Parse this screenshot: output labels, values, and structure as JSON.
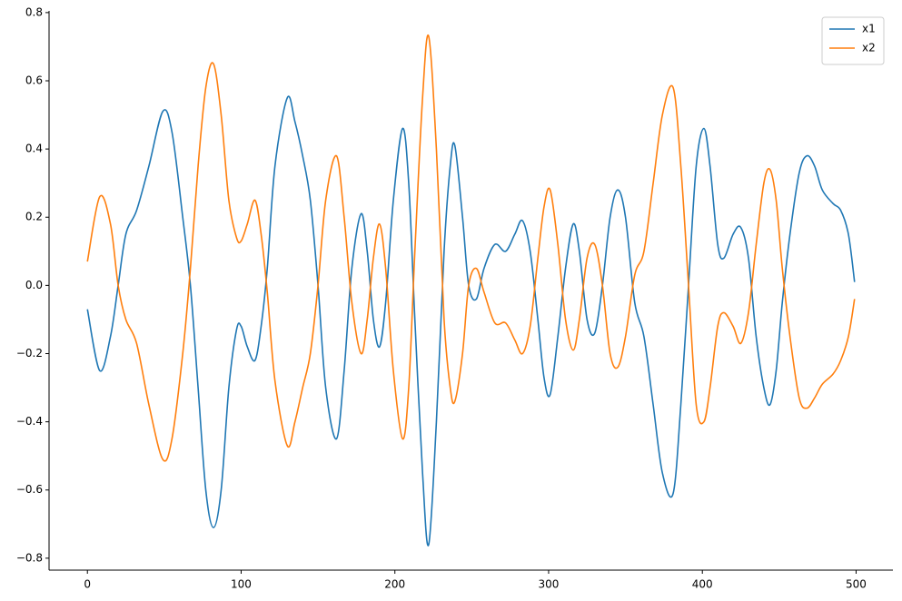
{
  "chart_data": {
    "type": "line",
    "x": [
      0,
      8,
      15,
      20,
      25,
      32,
      40,
      49,
      55,
      62,
      67,
      72,
      77,
      82,
      87,
      92,
      97,
      100,
      104,
      109,
      113,
      117,
      122,
      130,
      135,
      140,
      145,
      150,
      155,
      162,
      167,
      172,
      178,
      182,
      186,
      190,
      194,
      199,
      205,
      209,
      213,
      218,
      222,
      227,
      232,
      236,
      239,
      244,
      248,
      253,
      258,
      265,
      272,
      278,
      283,
      288,
      293,
      297,
      301,
      306,
      311,
      316,
      320,
      325,
      330,
      335,
      340,
      345,
      350,
      356,
      362,
      368,
      374,
      381,
      386,
      391,
      396,
      401,
      405,
      410,
      414,
      420,
      425,
      430,
      435,
      440,
      444,
      448,
      452,
      457,
      463,
      468,
      473,
      478,
      485,
      490,
      495,
      499
    ],
    "series": [
      {
        "name": "x1",
        "color": "#1f77b4",
        "values": [
          -0.07,
          -0.25,
          -0.15,
          0.0,
          0.15,
          0.22,
          0.35,
          0.51,
          0.45,
          0.2,
          0.0,
          -0.3,
          -0.6,
          -0.71,
          -0.6,
          -0.3,
          -0.13,
          -0.12,
          -0.18,
          -0.22,
          -0.12,
          0.05,
          0.35,
          0.55,
          0.48,
          0.38,
          0.25,
          0.0,
          -0.3,
          -0.45,
          -0.25,
          0.05,
          0.21,
          0.1,
          -0.1,
          -0.18,
          -0.05,
          0.25,
          0.46,
          0.3,
          -0.1,
          -0.55,
          -0.76,
          -0.4,
          0.1,
          0.35,
          0.41,
          0.2,
          0.0,
          -0.04,
          0.05,
          0.12,
          0.1,
          0.15,
          0.19,
          0.1,
          -0.1,
          -0.27,
          -0.32,
          -0.15,
          0.05,
          0.18,
          0.1,
          -0.1,
          -0.14,
          0.0,
          0.2,
          0.28,
          0.2,
          -0.05,
          -0.15,
          -0.35,
          -0.55,
          -0.61,
          -0.35,
          0.0,
          0.35,
          0.46,
          0.35,
          0.12,
          0.08,
          0.15,
          0.17,
          0.08,
          -0.15,
          -0.3,
          -0.35,
          -0.25,
          -0.05,
          0.15,
          0.33,
          0.38,
          0.35,
          0.28,
          0.24,
          0.22,
          0.15,
          0.01
        ]
      },
      {
        "name": "x2",
        "color": "#ff7f0e",
        "values": [
          0.07,
          0.26,
          0.18,
          0.0,
          -0.1,
          -0.17,
          -0.35,
          -0.51,
          -0.45,
          -0.2,
          0.05,
          0.35,
          0.58,
          0.65,
          0.5,
          0.25,
          0.14,
          0.13,
          0.18,
          0.25,
          0.15,
          -0.02,
          -0.28,
          -0.47,
          -0.4,
          -0.3,
          -0.2,
          0.0,
          0.25,
          0.38,
          0.2,
          -0.05,
          -0.2,
          -0.1,
          0.08,
          0.18,
          0.05,
          -0.25,
          -0.45,
          -0.3,
          0.1,
          0.55,
          0.73,
          0.4,
          -0.1,
          -0.3,
          -0.34,
          -0.2,
          0.0,
          0.05,
          -0.02,
          -0.11,
          -0.11,
          -0.16,
          -0.2,
          -0.12,
          0.08,
          0.23,
          0.28,
          0.12,
          -0.1,
          -0.19,
          -0.1,
          0.08,
          0.12,
          0.0,
          -0.2,
          -0.24,
          -0.15,
          0.03,
          0.1,
          0.3,
          0.5,
          0.58,
          0.35,
          0.0,
          -0.35,
          -0.4,
          -0.3,
          -0.12,
          -0.08,
          -0.12,
          -0.17,
          -0.08,
          0.12,
          0.3,
          0.34,
          0.25,
          0.05,
          -0.15,
          -0.33,
          -0.36,
          -0.33,
          -0.29,
          -0.26,
          -0.22,
          -0.15,
          -0.04
        ]
      }
    ],
    "xlim": [
      -24.95,
      523.95
    ],
    "xticks": [
      0,
      100,
      200,
      300,
      400,
      500
    ],
    "ylim": [
      -0.835,
      0.805
    ],
    "yticks": [
      {
        "value": -0.8,
        "label": "−0.8"
      },
      {
        "value": -0.6,
        "label": "−0.6"
      },
      {
        "value": -0.4,
        "label": "−0.4"
      },
      {
        "value": -0.2,
        "label": "−0.2"
      },
      {
        "value": 0,
        "label": "0.0"
      },
      0.2,
      0.4,
      0.6,
      0.8
    ],
    "legend": "upper right",
    "grid": false
  }
}
